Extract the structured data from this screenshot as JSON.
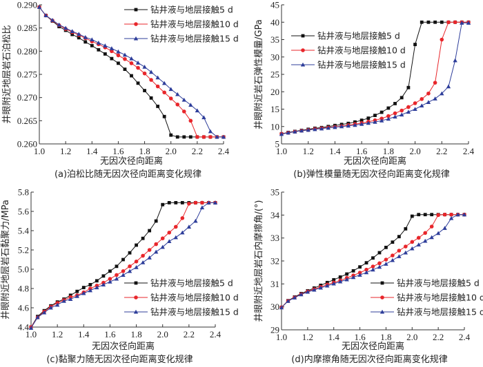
{
  "figure": {
    "legend_labels": [
      "钻井液与地层接触5 d",
      "钻井液与地层接触10 d",
      "钻井液与地层接触15 d"
    ],
    "series_colors": [
      "#111111",
      "#e8262b",
      "#2d3d9a"
    ],
    "series_markers": [
      "square",
      "circle",
      "triangle"
    ]
  },
  "chart_data": [
    {
      "id": "a",
      "type": "line",
      "title": "(a)泊松比随无因次径向距离变化规律",
      "xlabel": "无因次径向距离",
      "ylabel": "井眼附近地层岩石泊松比",
      "xlim": [
        1.0,
        2.4
      ],
      "ylim": [
        0.26,
        0.29
      ],
      "xticks": [
        "1.0",
        "1.2",
        "1.4",
        "1.6",
        "1.8",
        "2.0",
        "2.2",
        "2.4"
      ],
      "yticks": [
        "0.260",
        "0.265",
        "0.270",
        "0.275",
        "0.280",
        "0.285",
        "0.290"
      ],
      "legend_position": "top-right",
      "grid": false,
      "x": [
        1.0,
        1.05,
        1.1,
        1.15,
        1.2,
        1.25,
        1.3,
        1.35,
        1.4,
        1.45,
        1.5,
        1.55,
        1.6,
        1.65,
        1.7,
        1.75,
        1.8,
        1.85,
        1.9,
        1.95,
        2.0,
        2.05,
        2.1,
        2.15,
        2.2,
        2.25,
        2.3,
        2.35,
        2.4
      ],
      "series": [
        {
          "name": "钻井液与地层接触5 d",
          "values": [
            0.2895,
            0.2877,
            0.2865,
            0.2853,
            0.2845,
            0.2836,
            0.2829,
            0.282,
            0.2812,
            0.2803,
            0.2794,
            0.2784,
            0.2774,
            0.2761,
            0.2747,
            0.2731,
            0.2715,
            0.2699,
            0.2681,
            0.2659,
            0.2619,
            0.2615,
            0.2615,
            0.2615,
            0.2615,
            0.2615,
            0.2615,
            0.2615,
            0.2615
          ]
        },
        {
          "name": "钻井液与地层接触10 d",
          "values": [
            0.2895,
            0.2877,
            0.2866,
            0.2856,
            0.2848,
            0.2841,
            0.2835,
            0.2828,
            0.2821,
            0.2815,
            0.2808,
            0.28,
            0.2791,
            0.2783,
            0.2774,
            0.2764,
            0.2752,
            0.2738,
            0.2724,
            0.2711,
            0.2698,
            0.2685,
            0.267,
            0.265,
            0.2615,
            0.2615,
            0.2615,
            0.2615,
            0.2615
          ]
        },
        {
          "name": "钻井液与地层接触15 d",
          "values": [
            0.2895,
            0.2877,
            0.2867,
            0.2857,
            0.285,
            0.2843,
            0.2837,
            0.283,
            0.2825,
            0.2818,
            0.2812,
            0.2806,
            0.2799,
            0.2792,
            0.2784,
            0.2775,
            0.2766,
            0.2755,
            0.2743,
            0.2731,
            0.2718,
            0.2707,
            0.2695,
            0.2684,
            0.2672,
            0.2657,
            0.2627,
            0.2615,
            0.2615
          ]
        }
      ]
    },
    {
      "id": "b",
      "type": "line",
      "title": "(b)弹性模量随无因次径向距离变化规律",
      "xlabel": "无因次径向距离",
      "ylabel": "井眼附近岩石弹性模量/GPa",
      "xlim": [
        1.0,
        2.4
      ],
      "ylim": [
        5,
        45
      ],
      "xticks": [
        "1.0",
        "1.2",
        "1.4",
        "1.6",
        "1.8",
        "2.0",
        "2.2",
        "2.4"
      ],
      "yticks": [
        "5",
        "10",
        "15",
        "20",
        "25",
        "30",
        "35",
        "40",
        "45"
      ],
      "legend_position": "upper-left",
      "grid": false,
      "x": [
        1.0,
        1.05,
        1.1,
        1.15,
        1.2,
        1.25,
        1.3,
        1.35,
        1.4,
        1.45,
        1.5,
        1.55,
        1.6,
        1.65,
        1.7,
        1.75,
        1.8,
        1.85,
        1.9,
        1.95,
        2.0,
        2.05,
        2.1,
        2.15,
        2.2,
        2.25,
        2.3,
        2.35,
        2.4
      ],
      "series": [
        {
          "name": "钻井液与地层接触5 d",
          "values": [
            7.9,
            8.3,
            8.6,
            8.9,
            9.2,
            9.5,
            9.7,
            10.0,
            10.3,
            10.6,
            10.9,
            11.3,
            11.8,
            12.4,
            13.2,
            14.1,
            15.3,
            16.6,
            18.3,
            21.2,
            33.6,
            40,
            40,
            40,
            40,
            40,
            40,
            40,
            40
          ]
        },
        {
          "name": "钻井液与地层接触10 d",
          "values": [
            7.9,
            8.2,
            8.5,
            8.8,
            9.0,
            9.3,
            9.5,
            9.7,
            9.9,
            10.1,
            10.4,
            10.7,
            11.0,
            11.4,
            11.8,
            12.3,
            13.0,
            13.8,
            14.6,
            15.6,
            16.7,
            17.9,
            19.5,
            22.6,
            35.0,
            40,
            40,
            40,
            40
          ]
        },
        {
          "name": "钻井液与地层接触15 d",
          "values": [
            7.8,
            8.2,
            8.5,
            8.8,
            9.0,
            9.2,
            9.4,
            9.6,
            9.8,
            10.0,
            10.2,
            10.4,
            10.7,
            11.0,
            11.3,
            11.7,
            12.2,
            12.8,
            13.4,
            14.2,
            15.0,
            16.0,
            17.0,
            18.0,
            19.5,
            21.5,
            29.0,
            39.8,
            39.8
          ]
        }
      ]
    },
    {
      "id": "c",
      "type": "line",
      "title": "(c)黏聚力随无因次径向距离变化规律",
      "xlabel": "无因次径向距离",
      "ylabel": "井眼附近地层岩石黏聚力/MPa",
      "xlim": [
        1.0,
        2.4
      ],
      "ylim": [
        4.4,
        5.8
      ],
      "xticks": [
        "1.0",
        "1.2",
        "1.4",
        "1.6",
        "1.8",
        "2.0",
        "2.2",
        "2.4"
      ],
      "yticks": [
        "4.4",
        "4.6",
        "4.8",
        "5.0",
        "5.2",
        "5.4",
        "5.6",
        "5.8"
      ],
      "legend_position": "lower-right",
      "grid": false,
      "x": [
        1.0,
        1.05,
        1.1,
        1.15,
        1.2,
        1.25,
        1.3,
        1.35,
        1.4,
        1.45,
        1.5,
        1.55,
        1.6,
        1.65,
        1.7,
        1.75,
        1.8,
        1.85,
        1.9,
        1.95,
        2.0,
        2.05,
        2.1,
        2.15,
        2.2,
        2.25,
        2.3,
        2.35,
        2.4
      ],
      "series": [
        {
          "name": "钻井液与地层接触5 d",
          "values": [
            4.4,
            4.51,
            4.57,
            4.62,
            4.66,
            4.69,
            4.73,
            4.77,
            4.81,
            4.84,
            4.88,
            4.93,
            4.98,
            5.03,
            5.1,
            5.17,
            5.25,
            5.32,
            5.4,
            5.5,
            5.67,
            5.69,
            5.69,
            5.69,
            5.69,
            5.69,
            5.69,
            5.69,
            5.69
          ]
        },
        {
          "name": "钻井液与地层接触10 d",
          "values": [
            4.4,
            4.5,
            4.56,
            4.61,
            4.65,
            4.68,
            4.71,
            4.73,
            4.76,
            4.8,
            4.83,
            4.86,
            4.9,
            4.94,
            4.98,
            5.03,
            5.08,
            5.14,
            5.2,
            5.26,
            5.32,
            5.38,
            5.44,
            5.53,
            5.68,
            5.69,
            5.69,
            5.69,
            5.69
          ]
        },
        {
          "name": "钻井液与地层接触15 d",
          "values": [
            4.39,
            4.5,
            4.55,
            4.6,
            4.63,
            4.67,
            4.69,
            4.72,
            4.75,
            4.78,
            4.81,
            4.84,
            4.87,
            4.9,
            4.94,
            4.98,
            5.02,
            5.07,
            5.12,
            5.18,
            5.23,
            5.29,
            5.33,
            5.38,
            5.44,
            5.5,
            5.64,
            5.69,
            5.69
          ]
        }
      ]
    },
    {
      "id": "d",
      "type": "line",
      "title": "(d)内摩擦角随无因次径向距离变化规律",
      "xlabel": "无因次径向距离",
      "ylabel": "井眼附近地层岩石内摩擦角/(°)",
      "xlim": [
        1.0,
        2.4
      ],
      "ylim": [
        29,
        35
      ],
      "xticks": [
        "1.0",
        "1.2",
        "1.4",
        "1.6",
        "1.8",
        "2.0",
        "2.2",
        "2.4"
      ],
      "yticks": [
        "29",
        "30",
        "31",
        "32",
        "33",
        "34",
        "35"
      ],
      "legend_position": "lower-right",
      "grid": false,
      "x": [
        1.0,
        1.05,
        1.1,
        1.15,
        1.2,
        1.25,
        1.3,
        1.35,
        1.4,
        1.45,
        1.5,
        1.55,
        1.6,
        1.65,
        1.7,
        1.75,
        1.8,
        1.85,
        1.9,
        1.95,
        2.0,
        2.05,
        2.1,
        2.15,
        2.2,
        2.25,
        2.3,
        2.35,
        2.4
      ],
      "series": [
        {
          "name": "钻井液与地层接触5 d",
          "values": [
            29.98,
            30.27,
            30.43,
            30.58,
            30.7,
            30.82,
            30.94,
            31.06,
            31.18,
            31.3,
            31.43,
            31.57,
            31.74,
            31.92,
            32.13,
            32.36,
            32.59,
            32.82,
            33.06,
            33.4,
            33.95,
            34.02,
            34.02,
            34.02,
            34.02,
            34.02,
            34.02,
            34.02,
            34.02
          ]
        },
        {
          "name": "钻井液与地层接触10 d",
          "values": [
            29.98,
            30.26,
            30.41,
            30.55,
            30.67,
            30.77,
            30.87,
            30.97,
            31.06,
            31.15,
            31.26,
            31.37,
            31.49,
            31.62,
            31.76,
            31.9,
            32.06,
            32.24,
            32.45,
            32.63,
            32.83,
            33.01,
            33.22,
            33.5,
            34.0,
            34.02,
            34.02,
            34.02,
            34.02
          ]
        },
        {
          "name": "钻井液与地层接触15 d",
          "values": [
            29.97,
            30.25,
            30.4,
            30.54,
            30.65,
            30.74,
            30.83,
            30.92,
            31.01,
            31.1,
            31.19,
            31.29,
            31.39,
            31.5,
            31.62,
            31.74,
            31.87,
            32.03,
            32.2,
            32.36,
            32.54,
            32.71,
            32.87,
            33.03,
            33.21,
            33.43,
            33.86,
            34.02,
            34.02
          ]
        }
      ]
    }
  ]
}
